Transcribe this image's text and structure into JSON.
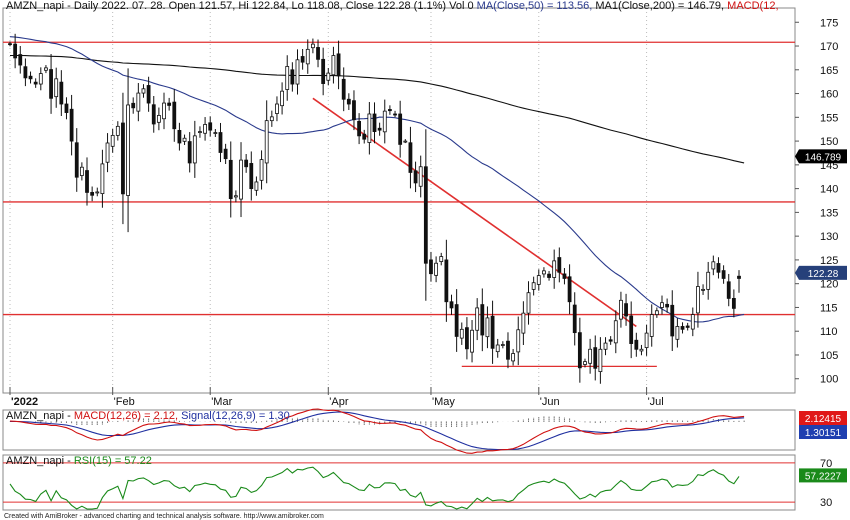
{
  "chart_data": [
    {
      "type": "candlestick",
      "header": {
        "prefix": "AMZN_napi - Daily 2022. 07. 28. Open 121.57, Hi 122.84, Lo 118.08, Close 122.28 (1.1%) Vol 0 ",
        "ma50": "MA(Close,50) = 113.56, ",
        "ma200": "MA1(Close,200) = 146.79, ",
        "macd": "MACD(12,"
      },
      "colors": {
        "ma50": "#2a3a8c",
        "ma200": "#111111",
        "macd": "#d01010",
        "trendline": "#e03030",
        "hline": "#e03030",
        "up_body": "#ffffff",
        "down_body": "#111111"
      },
      "ylim": [
        97,
        178
      ],
      "y_ticks": [
        100,
        105,
        110,
        115,
        120,
        125,
        130,
        135,
        140,
        145,
        150,
        155,
        160,
        165,
        170,
        175
      ],
      "x_labels": [
        "2022",
        "Feb",
        "Mar",
        "Apr",
        "May",
        "Jun",
        "Jul"
      ],
      "price_tags": [
        {
          "label": "146.789",
          "value": 146.79,
          "bg": "#000000"
        },
        {
          "label": "122.28",
          "value": 122.28,
          "bg": "#26407a"
        }
      ],
      "horizontal_lines": [
        {
          "value": 170.8,
          "from": "2022-01-03",
          "to": "2022-07-28"
        },
        {
          "value": 137.2,
          "from": "2022-01-03",
          "to": "2022-07-28"
        },
        {
          "value": 113.5,
          "from": "2022-01-03",
          "to": "2022-07-28"
        },
        {
          "value": 102.6,
          "from": "2022-05-10",
          "to": "2022-07-06"
        }
      ],
      "trendline": {
        "from": [
          "2022-03-29",
          159.0
        ],
        "to": [
          "2022-06-29",
          111.0
        ]
      },
      "candles_dates": [
        "2022-01-03",
        "2022-01-04",
        "2022-01-05",
        "2022-01-06",
        "2022-01-07",
        "2022-01-10",
        "2022-01-11",
        "2022-01-12",
        "2022-01-13",
        "2022-01-14",
        "2022-01-18",
        "2022-01-19",
        "2022-01-20",
        "2022-01-21",
        "2022-01-24",
        "2022-01-25",
        "2022-01-26",
        "2022-01-27",
        "2022-01-28",
        "2022-01-31",
        "2022-02-01",
        "2022-02-02",
        "2022-02-03",
        "2022-02-04",
        "2022-02-07",
        "2022-02-08",
        "2022-02-09",
        "2022-02-10",
        "2022-02-11",
        "2022-02-14",
        "2022-02-15",
        "2022-02-16",
        "2022-02-17",
        "2022-02-18",
        "2022-02-22",
        "2022-02-23",
        "2022-02-24",
        "2022-02-25",
        "2022-02-28",
        "2022-03-01",
        "2022-03-02",
        "2022-03-03",
        "2022-03-04",
        "2022-03-07",
        "2022-03-08",
        "2022-03-09",
        "2022-03-10",
        "2022-03-11",
        "2022-03-14",
        "2022-03-15",
        "2022-03-16",
        "2022-03-17",
        "2022-03-18",
        "2022-03-21",
        "2022-03-22",
        "2022-03-23",
        "2022-03-24",
        "2022-03-25",
        "2022-03-28",
        "2022-03-29",
        "2022-03-30",
        "2022-03-31",
        "2022-04-01",
        "2022-04-04",
        "2022-04-05",
        "2022-04-06",
        "2022-04-07",
        "2022-04-08",
        "2022-04-11",
        "2022-04-12",
        "2022-04-13",
        "2022-04-14",
        "2022-04-18",
        "2022-04-19",
        "2022-04-20",
        "2022-04-21",
        "2022-04-22",
        "2022-04-25",
        "2022-04-26",
        "2022-04-27",
        "2022-04-28",
        "2022-04-29",
        "2022-05-02",
        "2022-05-03",
        "2022-05-04",
        "2022-05-05",
        "2022-05-06",
        "2022-05-09",
        "2022-05-10",
        "2022-05-11",
        "2022-05-12",
        "2022-05-13",
        "2022-05-16",
        "2022-05-17",
        "2022-05-18",
        "2022-05-19",
        "2022-05-20",
        "2022-05-23",
        "2022-05-24",
        "2022-05-25",
        "2022-05-26",
        "2022-05-27",
        "2022-05-31",
        "2022-06-01",
        "2022-06-02",
        "2022-06-03",
        "2022-06-06",
        "2022-06-07",
        "2022-06-08",
        "2022-06-09",
        "2022-06-10",
        "2022-06-13",
        "2022-06-14",
        "2022-06-15",
        "2022-06-16",
        "2022-06-17",
        "2022-06-21",
        "2022-06-22",
        "2022-06-23",
        "2022-06-24",
        "2022-06-27",
        "2022-06-28",
        "2022-06-29",
        "2022-06-30",
        "2022-07-01",
        "2022-07-05",
        "2022-07-06",
        "2022-07-07",
        "2022-07-08",
        "2022-07-11",
        "2022-07-12",
        "2022-07-13",
        "2022-07-14",
        "2022-07-15",
        "2022-07-18",
        "2022-07-19",
        "2022-07-20",
        "2022-07-21",
        "2022-07-22",
        "2022-07-25",
        "2022-07-26",
        "2022-07-27",
        "2022-07-28"
      ],
      "closes": [
        170.4,
        167.5,
        166.0,
        163.3,
        163.1,
        162.0,
        164.2,
        165.4,
        159.0,
        163.1,
        157.8,
        156.0,
        150.0,
        142.4,
        144.5,
        139.2,
        138.6,
        139.3,
        145.2,
        149.6,
        151.2,
        153.1,
        138.9,
        157.6,
        157.0,
        160.1,
        161.0,
        158.0,
        153.6,
        155.4,
        158.0,
        157.5,
        152.6,
        149.6,
        150.6,
        145.4,
        151.1,
        152.0,
        153.5,
        152.3,
        151.8,
        147.6,
        146.3,
        137.9,
        138.5,
        146.0,
        144.6,
        140.0,
        141.4,
        146.1,
        154.3,
        155.1,
        157.8,
        160.5,
        165.7,
        162.0,
        167.1,
        166.6,
        169.3,
        170.4,
        167.2,
        162.1,
        164.3,
        168.0,
        163.7,
        158.8,
        157.8,
        154.5,
        151.1,
        150.4,
        155.7,
        152.0,
        152.3,
        156.3,
        156.4,
        155.7,
        149.3,
        150.0,
        143.4,
        141.2,
        144.6,
        124.3,
        122.1,
        124.3,
        125.7,
        116.2,
        114.9,
        108.9,
        110.4,
        106.3,
        110.2,
        114.9,
        109.2,
        112.8,
        106.4,
        107.1,
        107.2,
        104.1,
        105.3,
        110.3,
        113.8,
        118.1,
        120.2,
        121.7,
        122.7,
        121.3,
        124.8,
        122.4,
        121.1,
        116.2,
        109.7,
        102.3,
        103.6,
        106.2,
        102.2,
        106.2,
        107.5,
        107.9,
        112.2,
        116.5,
        113.2,
        107.4,
        106.2,
        106.2,
        109.6,
        113.5,
        114.3,
        116.0,
        115.1,
        109.0,
        111.0,
        110.4,
        110.8,
        113.5,
        119.4,
        118.8,
        122.4,
        124.6,
        122.4,
        121.1,
        116.9,
        114.8,
        121.1,
        122.3
      ],
      "macd_panel": {
        "header": {
          "prefix": "AMZN_napi - ",
          "macd": "MACD(12,26) = 2.12, ",
          "signal": "Signal(12,26,9) = 1.30"
        },
        "colors": {
          "macd": "#d01010",
          "signal": "#2030a0",
          "hist": "#222222"
        },
        "ylim": [
          -11,
          4.5
        ],
        "macd_tag": {
          "label": "2.12415",
          "value": 2.12415,
          "bg": "#e01818"
        },
        "signal_tag": {
          "label": "1.30151",
          "value": 1.30151,
          "bg": "#1f3fb0"
        }
      },
      "rsi_panel": {
        "header": {
          "prefix": "AMZN_napi - ",
          "rsi": "RSI(15) = 57.22"
        },
        "color": "#1a8a1a",
        "ylim": [
          22,
          78
        ],
        "levels": [
          70,
          30
        ],
        "tick_labels": [
          "70",
          "30"
        ],
        "tag": {
          "label": "57.2227",
          "value": 57.2227,
          "bg": "#1a8a1a"
        }
      },
      "footer": "Created with AmiBroker - advanced charting and technical analysis software. http://www.amibroker.com"
    }
  ]
}
